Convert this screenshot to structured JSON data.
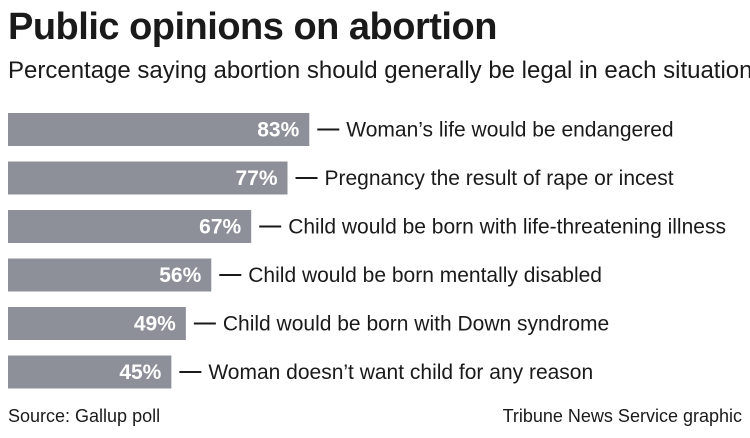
{
  "header": {
    "title": "Public opinions on abortion",
    "subtitle": "Percentage saying abortion should generally be legal in each situation:"
  },
  "footer": {
    "source": "Source: Gallup poll",
    "credit": "Tribune News Service graphic"
  },
  "colors": {
    "bar": "#8e9099",
    "text": "#1a1a1a",
    "value_text": "#ffffff"
  },
  "chart_data": {
    "type": "bar",
    "orientation": "horizontal",
    "title": "Public opinions on abortion",
    "subtitle": "Percentage saying abortion should generally be legal in each situation:",
    "categories": [
      "Woman’s life would be endangered",
      "Pregnancy the result of rape or incest",
      "Child would be born with life-threatening illness",
      "Child would be born mentally disabled",
      "Child would be born with Down syndrome",
      "Woman doesn’t want child for any reason"
    ],
    "values": [
      83,
      77,
      67,
      56,
      49,
      45
    ],
    "value_labels": [
      "83%",
      "77%",
      "67%",
      "56%",
      "49%",
      "45%"
    ],
    "unit": "%",
    "grid": false,
    "legend": "none"
  }
}
